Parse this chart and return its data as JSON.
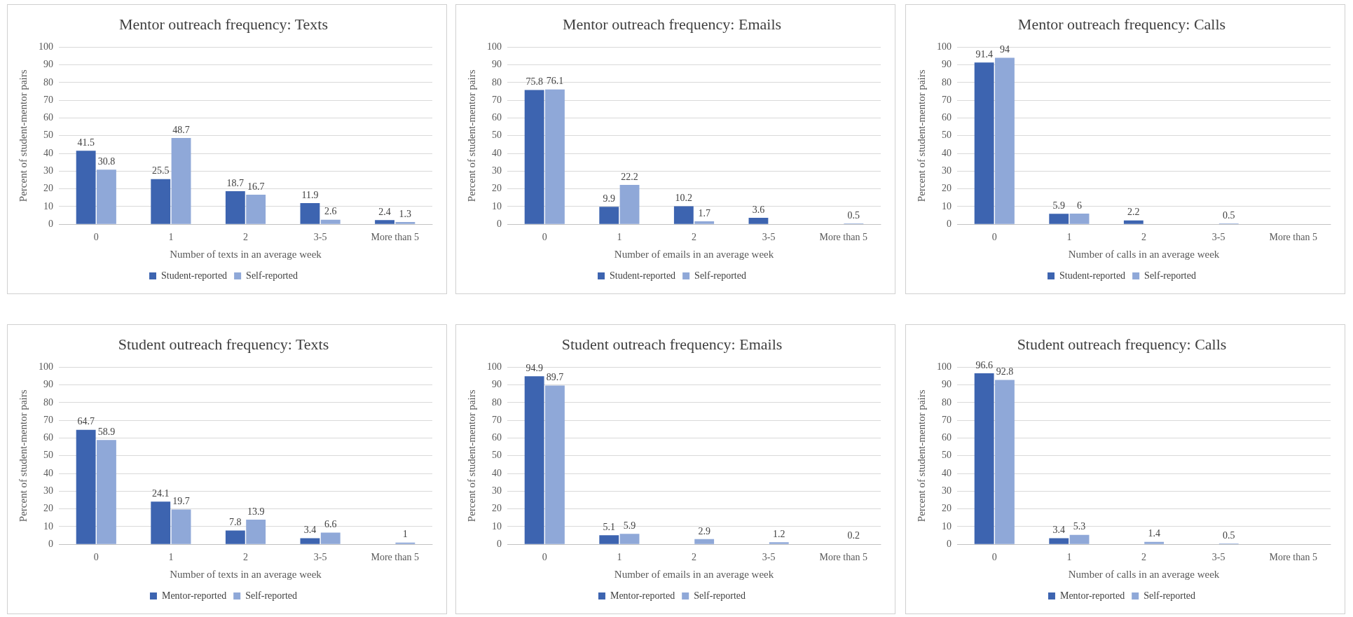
{
  "chart_data": [
    {
      "type": "bar",
      "title": "Mentor outreach frequency: Texts",
      "xlabel": "Number of texts in an average week",
      "ylabel": "Percent of student-mentor pairs",
      "categories": [
        "0",
        "1",
        "2",
        "3-5",
        "More than 5"
      ],
      "series": [
        {
          "name": "Student-reported",
          "color": "#3d64b0",
          "values": [
            41.5,
            25.5,
            18.7,
            11.9,
            2.4
          ]
        },
        {
          "name": "Self-reported",
          "color": "#8fa8d8",
          "values": [
            30.8,
            48.7,
            16.7,
            2.6,
            1.3
          ]
        }
      ],
      "ylim": [
        0,
        100
      ],
      "yticks": [
        0,
        10,
        20,
        30,
        40,
        50,
        60,
        70,
        80,
        90,
        100
      ],
      "grid": "y",
      "legend": "bottom",
      "data_labels": true
    },
    {
      "type": "bar",
      "title": "Mentor outreach frequency: Emails",
      "xlabel": "Number of emails in an average week",
      "ylabel": "Percent of student-mentor pairs",
      "categories": [
        "0",
        "1",
        "2",
        "3-5",
        "More than 5"
      ],
      "series": [
        {
          "name": "Student-reported",
          "color": "#3d64b0",
          "values": [
            75.8,
            9.9,
            10.2,
            3.6,
            null
          ]
        },
        {
          "name": "Self-reported",
          "color": "#8fa8d8",
          "values": [
            76.1,
            22.2,
            1.7,
            null,
            0.5
          ]
        }
      ],
      "ylim": [
        0,
        100
      ],
      "yticks": [
        0,
        10,
        20,
        30,
        40,
        50,
        60,
        70,
        80,
        90,
        100
      ],
      "grid": "y",
      "legend": "bottom",
      "data_labels": true
    },
    {
      "type": "bar",
      "title": "Mentor outreach frequency: Calls",
      "xlabel": "Number of calls in an average week",
      "ylabel": "Percent of student-mentor pairs",
      "categories": [
        "0",
        "1",
        "2",
        "3-5",
        "More than 5"
      ],
      "series": [
        {
          "name": "Student-reported",
          "color": "#3d64b0",
          "values": [
            91.4,
            5.9,
            2.2,
            null,
            null
          ]
        },
        {
          "name": "Self-reported",
          "color": "#8fa8d8",
          "values": [
            94,
            6,
            null,
            0.5,
            null
          ]
        }
      ],
      "ylim": [
        0,
        100
      ],
      "yticks": [
        0,
        10,
        20,
        30,
        40,
        50,
        60,
        70,
        80,
        90,
        100
      ],
      "grid": "y",
      "legend": "bottom",
      "data_labels": true
    },
    {
      "type": "bar",
      "title": "Student outreach frequency: Texts",
      "xlabel": "Number of texts in an average week",
      "ylabel": "Percent of student-mentor pairs",
      "categories": [
        "0",
        "1",
        "2",
        "3-5",
        "More than 5"
      ],
      "series": [
        {
          "name": "Mentor-reported",
          "color": "#3d64b0",
          "values": [
            64.7,
            24.1,
            7.8,
            3.4,
            null
          ]
        },
        {
          "name": "Self-reported",
          "color": "#8fa8d8",
          "values": [
            58.9,
            19.7,
            13.9,
            6.6,
            1
          ]
        }
      ],
      "ylim": [
        0,
        100
      ],
      "yticks": [
        0,
        10,
        20,
        30,
        40,
        50,
        60,
        70,
        80,
        90,
        100
      ],
      "grid": "y",
      "legend": "bottom",
      "data_labels": true
    },
    {
      "type": "bar",
      "title": "Student outreach frequency: Emails",
      "xlabel": "Number of emails in an average week",
      "ylabel": "Percent of student-mentor pairs",
      "categories": [
        "0",
        "1",
        "2",
        "3-5",
        "More than 5"
      ],
      "series": [
        {
          "name": "Mentor-reported",
          "color": "#3d64b0",
          "values": [
            94.9,
            5.1,
            null,
            null,
            null
          ]
        },
        {
          "name": "Self-reported",
          "color": "#8fa8d8",
          "values": [
            89.7,
            5.9,
            2.9,
            1.2,
            0.2
          ]
        }
      ],
      "ylim": [
        0,
        100
      ],
      "yticks": [
        0,
        10,
        20,
        30,
        40,
        50,
        60,
        70,
        80,
        90,
        100
      ],
      "grid": "y",
      "legend": "bottom",
      "data_labels": true
    },
    {
      "type": "bar",
      "title": "Student outreach frequency: Calls",
      "xlabel": "Number of calls in an average week",
      "ylabel": "Percent of student-mentor pairs",
      "categories": [
        "0",
        "1",
        "2",
        "3-5",
        "More than 5"
      ],
      "series": [
        {
          "name": "Mentor-reported",
          "color": "#3d64b0",
          "values": [
            96.6,
            3.4,
            null,
            null,
            null
          ]
        },
        {
          "name": "Self-reported",
          "color": "#8fa8d8",
          "values": [
            92.8,
            5.3,
            1.4,
            0.5,
            null
          ]
        }
      ],
      "ylim": [
        0,
        100
      ],
      "yticks": [
        0,
        10,
        20,
        30,
        40,
        50,
        60,
        70,
        80,
        90,
        100
      ],
      "grid": "y",
      "legend": "bottom",
      "data_labels": true
    }
  ]
}
